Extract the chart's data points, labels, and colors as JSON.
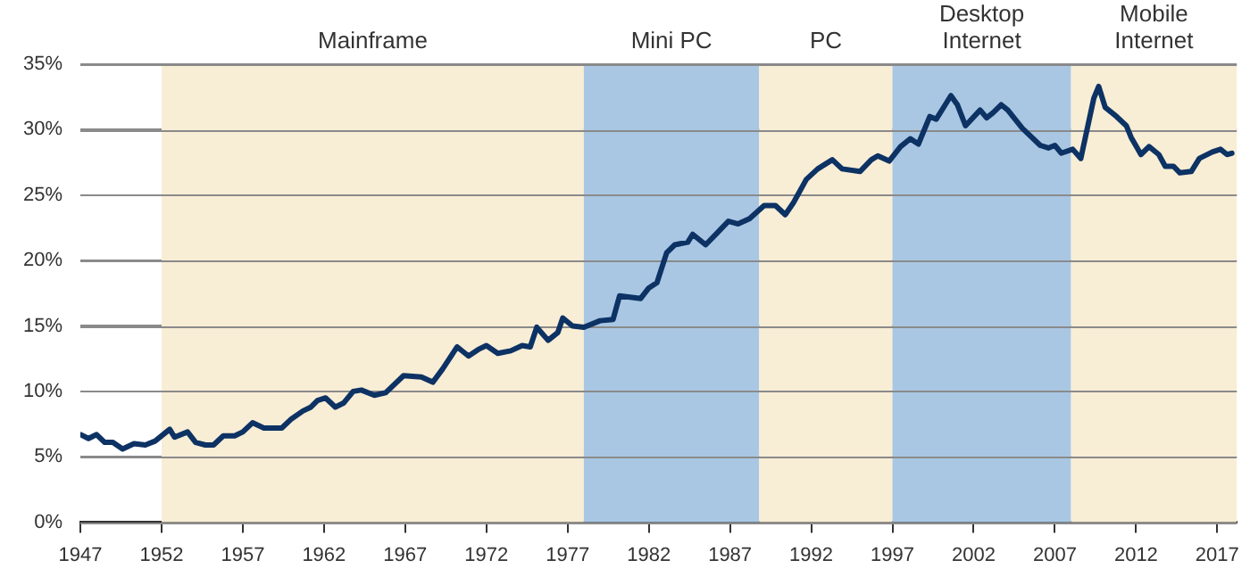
{
  "chart_data": {
    "type": "line",
    "x": [
      1947,
      1947.5,
      1948,
      1948.5,
      1949,
      1949.6,
      1950.3,
      1951,
      1951.6,
      1952.5,
      1952.8,
      1953.6,
      1954.1,
      1954.7,
      1955.2,
      1955.8,
      1956.5,
      1957,
      1957.6,
      1958.3,
      1959.4,
      1960,
      1960.7,
      1961.2,
      1961.6,
      1962.1,
      1962.7,
      1963.2,
      1963.8,
      1964.3,
      1965.1,
      1965.8,
      1966.9,
      1968,
      1968.7,
      1969.3,
      1970.2,
      1970.9,
      1971.5,
      1972,
      1972.7,
      1973.5,
      1974.2,
      1974.7,
      1975.1,
      1975.8,
      1976.4,
      1976.7,
      1977.3,
      1978,
      1979,
      1979.8,
      1980.2,
      1981.5,
      1982,
      1982.5,
      1983.1,
      1983.6,
      1984.4,
      1984.7,
      1985.5,
      1986.2,
      1986.9,
      1987.5,
      1988.2,
      1989.1,
      1989.8,
      1990.4,
      1990.9,
      1991.7,
      1992.4,
      1993.3,
      1993.9,
      1995,
      1995.7,
      1996.1,
      1996.8,
      1997.5,
      1998.1,
      1998.6,
      1999.3,
      1999.7,
      2000.2,
      2000.6,
      2001,
      2001.5,
      2002.4,
      2002.8,
      2003.2,
      2003.7,
      2004.1,
      2005,
      2006.1,
      2006.6,
      2007,
      2007.4,
      2008.1,
      2008.6,
      2009.4,
      2009.7,
      2010.1,
      2010.8,
      2011.4,
      2011.7,
      2012.3,
      2012.8,
      2013.4,
      2013.8,
      2014.3,
      2014.7,
      2015.4,
      2015.9,
      2016.7,
      2017.2,
      2017.6,
      2017.9
    ],
    "series": [
      {
        "color": "#0d3264",
        "values": [
          6.7,
          6.4,
          6.7,
          6.1,
          6.1,
          5.6,
          6.0,
          5.9,
          6.2,
          7.1,
          6.5,
          6.9,
          6.1,
          5.9,
          5.9,
          6.6,
          6.6,
          6.9,
          7.6,
          7.2,
          7.2,
          7.9,
          8.5,
          8.8,
          9.3,
          9.5,
          8.8,
          9.1,
          10.0,
          10.1,
          9.7,
          9.9,
          11.2,
          11.1,
          10.7,
          11.7,
          13.4,
          12.7,
          13.2,
          13.5,
          12.9,
          13.1,
          13.5,
          13.4,
          14.9,
          13.9,
          14.5,
          15.6,
          15.0,
          14.9,
          15.4,
          15.5,
          17.3,
          17.1,
          17.9,
          18.3,
          20.6,
          21.2,
          21.4,
          22.0,
          21.2,
          22.1,
          23.0,
          22.8,
          23.2,
          24.2,
          24.2,
          23.5,
          24.4,
          26.2,
          27.0,
          27.7,
          27.0,
          26.8,
          27.7,
          28.0,
          27.6,
          28.7,
          29.3,
          28.9,
          31.0,
          30.8,
          31.8,
          32.6,
          31.9,
          30.3,
          31.5,
          30.9,
          31.3,
          31.9,
          31.5,
          30.1,
          28.8,
          28.6,
          28.8,
          28.2,
          28.5,
          27.8,
          32.4,
          33.3,
          31.7,
          31.0,
          30.3,
          29.4,
          28.1,
          28.7,
          28.1,
          27.2,
          27.2,
          26.7,
          26.8,
          27.8,
          28.3,
          28.5,
          28.1,
          28.2
        ]
      }
    ],
    "xlim": [
      1947,
      2018.2
    ],
    "xticks": [
      1947,
      1952,
      1957,
      1962,
      1967,
      1972,
      1977,
      1982,
      1987,
      1992,
      1997,
      2002,
      2007,
      2012,
      2017
    ],
    "ylim": [
      0,
      35
    ],
    "yticks": [
      {
        "value": 0,
        "label": "0%"
      },
      {
        "value": 5,
        "label": "5%"
      },
      {
        "value": 10,
        "label": "10%"
      },
      {
        "value": 15,
        "label": "15%"
      },
      {
        "value": 20,
        "label": "20%"
      },
      {
        "value": 25,
        "label": "25%"
      },
      {
        "value": 30,
        "label": "30%"
      },
      {
        "value": 35,
        "label": "35%"
      }
    ],
    "grid": "y",
    "marker": "none",
    "line_style": "solid",
    "bands": [
      {
        "axis": "x",
        "from": 1952,
        "to": 1978,
        "label": "Mainframe",
        "color": "#f8edd5"
      },
      {
        "axis": "x",
        "from": 1978,
        "to": 1988.8,
        "label": "Mini PC",
        "color": "#a9c7e3"
      },
      {
        "axis": "x",
        "from": 1988.8,
        "to": 1997,
        "label": "PC",
        "color": "#f8edd5"
      },
      {
        "axis": "x",
        "from": 1997,
        "to": 2008,
        "label": "Desktop Internet",
        "color": "#a9c7e3"
      },
      {
        "axis": "x",
        "from": 2008,
        "to": 2018.2,
        "label": "Mobile Internet",
        "color": "#f8edd5"
      }
    ]
  }
}
